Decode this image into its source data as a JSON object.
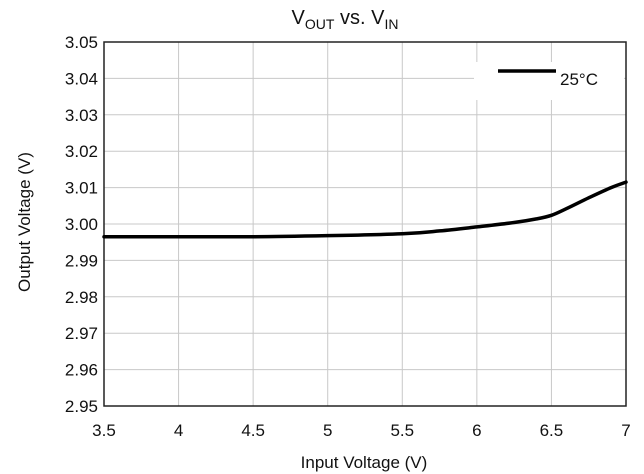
{
  "chart_data": {
    "type": "line",
    "title": "V",
    "title_sub1": "OUT",
    "title_mid": " vs. V",
    "title_sub2": "IN",
    "xlabel": "Input Voltage (V)",
    "ylabel": "Output Voltage (V)",
    "xlim": [
      3.5,
      7
    ],
    "ylim": [
      2.95,
      3.05
    ],
    "x_ticks": [
      "3.5",
      "4",
      "4.5",
      "5",
      "5.5",
      "6",
      "6.5",
      "7"
    ],
    "y_ticks": [
      "3.05",
      "3.04",
      "3.03",
      "3.02",
      "3.01",
      "3.00",
      "2.99",
      "2.98",
      "2.97",
      "2.96",
      "2.95"
    ],
    "grid": true,
    "legend_position": "top-right",
    "series": [
      {
        "name": "25°C",
        "color": "#000000",
        "x": [
          3.5,
          4.0,
          4.5,
          5.0,
          5.5,
          5.75,
          6.0,
          6.25,
          6.4,
          6.5,
          6.6,
          6.75,
          6.9,
          7.0
        ],
        "y": [
          2.9965,
          2.9965,
          2.9965,
          2.9968,
          2.9973,
          2.9981,
          2.9992,
          3.0004,
          3.0014,
          3.0024,
          3.0042,
          3.0072,
          3.01,
          3.0115
        ]
      }
    ]
  }
}
